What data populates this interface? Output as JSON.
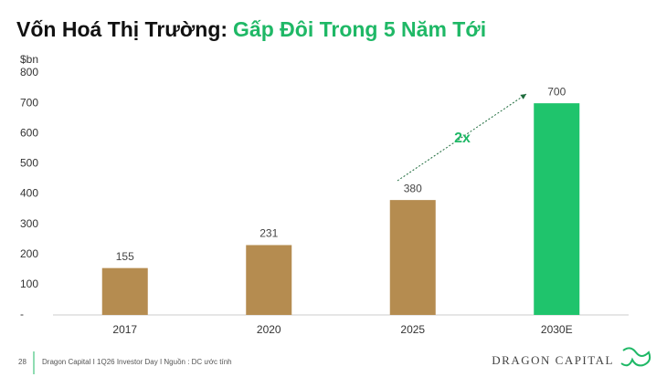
{
  "chart_data": {
    "type": "bar",
    "title": "Vốn Hoá Thị Trường:",
    "title_highlight": "Gấp Đôi Trong 5 Năm Tới",
    "y_label": "$bn",
    "categories": [
      "2017",
      "2020",
      "2025",
      "2030E"
    ],
    "values": [
      155,
      231,
      380,
      700
    ],
    "colors": [
      "#b58c50",
      "#b58c50",
      "#b58c50",
      "#1fc46c"
    ],
    "ylim": [
      0,
      800
    ],
    "yticks": [
      {
        "value": 0,
        "label": "-"
      },
      100,
      200,
      300,
      400,
      500,
      600,
      700,
      800
    ],
    "annotation": "2x",
    "grid": false
  },
  "footer": {
    "page": "28",
    "source": "Dragon Capital I 1Q26 Investor Day I Nguồn : DC ước tính",
    "brand": "DRAGON CAPITAL"
  }
}
